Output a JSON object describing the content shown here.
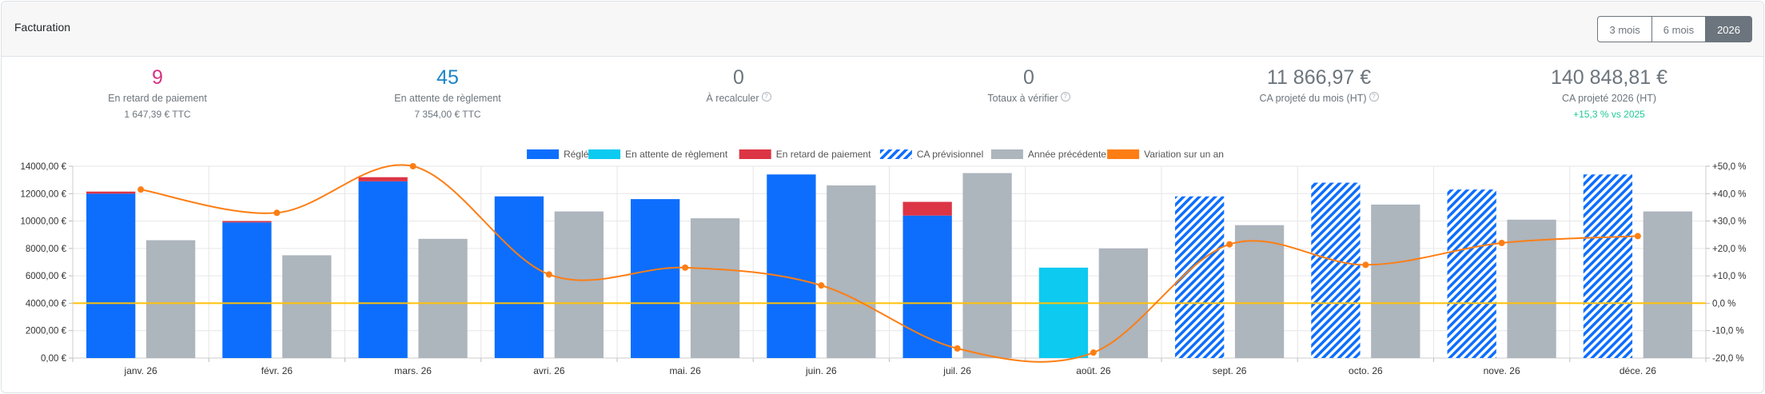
{
  "header": {
    "title": "Facturation",
    "periods": [
      {
        "label": "3 mois",
        "active": false
      },
      {
        "label": "6 mois",
        "active": false
      },
      {
        "label": "2026",
        "active": true
      }
    ]
  },
  "kpis": [
    {
      "value": "9",
      "label": "En retard de paiement",
      "sub": "1 647,39 € TTC",
      "color": "#d63384",
      "help": false
    },
    {
      "value": "45",
      "label": "En attente de règlement",
      "sub": "7 354,00 € TTC",
      "color": "#1c84c6",
      "help": false
    },
    {
      "value": "0",
      "label": "À recalculer",
      "sub": "",
      "color": "#6c757d",
      "help": true
    },
    {
      "value": "0",
      "label": "Totaux à vérifier",
      "sub": "",
      "color": "#6c757d",
      "help": true
    },
    {
      "value": "11 866,97 €",
      "label": "CA projeté du mois (HT)",
      "sub": "",
      "color": "#6c757d",
      "help": true
    },
    {
      "value": "140 848,81 €",
      "label": "CA projeté 2026 (HT)",
      "sub": "+15,3 % vs 2025",
      "color": "#6c757d",
      "sub_color": "#20c997",
      "help": false
    }
  ],
  "chart_data": {
    "type": "bar",
    "categories": [
      "janv. 26",
      "févr. 26",
      "mars. 26",
      "avri. 26",
      "mai. 26",
      "juin. 26",
      "juil. 26",
      "août. 26",
      "sept. 26",
      "octo. 26",
      "nove. 26",
      "déce. 26"
    ],
    "series": [
      {
        "name": "Réglé",
        "color": "#0d6efd",
        "stack": "current",
        "values": [
          12000,
          9900,
          12900,
          11800,
          11600,
          13400,
          10400,
          0,
          0,
          0,
          0,
          0
        ]
      },
      {
        "name": "En attente de règlement",
        "color": "#0dcaf0",
        "stack": "current",
        "values": [
          0,
          0,
          0,
          0,
          0,
          0,
          0,
          6600,
          0,
          0,
          0,
          0
        ]
      },
      {
        "name": "En retard de paiement",
        "color": "#dc3545",
        "stack": "current",
        "values": [
          150,
          100,
          300,
          0,
          0,
          0,
          1000,
          0,
          0,
          0,
          0,
          0
        ]
      },
      {
        "name": "CA prévisionnel",
        "color": "#0d6efd",
        "pattern": "hatched",
        "stack": "current",
        "values": [
          0,
          0,
          0,
          0,
          0,
          0,
          0,
          0,
          11800,
          12800,
          12300,
          13400
        ]
      },
      {
        "name": "Année précédente",
        "color": "#adb5bd",
        "stack": "previous",
        "values": [
          8600,
          7500,
          8700,
          10700,
          10200,
          12600,
          13500,
          8000,
          9700,
          11200,
          10100,
          10700
        ]
      },
      {
        "name": "Variation sur un an",
        "color": "#fd7e14",
        "type": "line",
        "axis": "right",
        "values": [
          41.5,
          33.0,
          50.0,
          10.5,
          13.0,
          6.5,
          -16.5,
          -18.0,
          21.5,
          14.0,
          22.0,
          24.5
        ]
      }
    ],
    "y_left": {
      "min": 0,
      "max": 14000,
      "ticks": [
        0,
        2000,
        4000,
        6000,
        8000,
        10000,
        12000,
        14000
      ],
      "tick_labels": [
        "0,00 €",
        "2000,00 €",
        "4000,00 €",
        "6000,00 €",
        "8000,00 €",
        "10000,00 €",
        "12000,00 €",
        "14000,00 €"
      ]
    },
    "y_right": {
      "min": -20,
      "max": 50,
      "ticks": [
        -20,
        -10,
        0,
        10,
        20,
        30,
        40,
        50
      ],
      "tick_labels": [
        "-20,0 %",
        "-10,0 %",
        "0,0 %",
        "+10,0 %",
        "+20,0 %",
        "+30,0 %",
        "+40,0 %",
        "+50,0 %"
      ]
    },
    "reference_line": {
      "axis": "right",
      "value": 0,
      "color": "#ffc107"
    },
    "legend_position": "top-center",
    "grid": true
  }
}
